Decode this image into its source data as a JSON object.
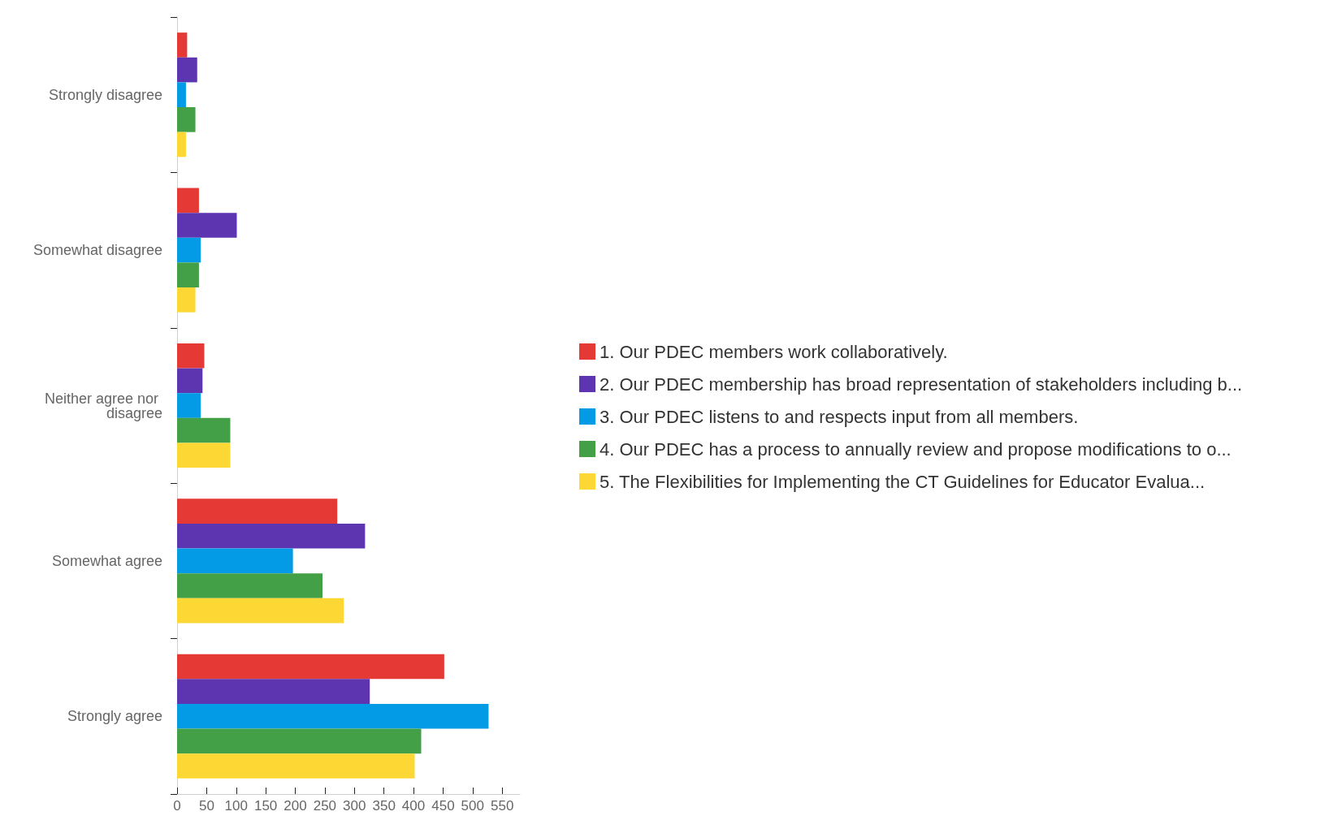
{
  "chart_data": {
    "type": "bar",
    "orientation": "horizontal",
    "categories": [
      "Strongly disagree",
      "Somewhat disagree",
      "Neither agree nor disagree",
      "Somewhat agree",
      "Strongly agree"
    ],
    "series": [
      {
        "name": "1. Our PDEC members work collaboratively.",
        "color": "#e53935",
        "values": [
          17,
          37,
          46,
          271,
          452
        ]
      },
      {
        "name": "2. Our PDEC membership has broad representation of stakeholders including b...",
        "color": "#5e35b1",
        "values": [
          34,
          101,
          43,
          318,
          326
        ]
      },
      {
        "name": "3. Our PDEC listens to and respects input from all members.",
        "color": "#039be5",
        "values": [
          15,
          40,
          40,
          196,
          527
        ]
      },
      {
        "name": "4. Our PDEC has a process to annually review and propose modifications to o...",
        "color": "#43a047",
        "values": [
          31,
          37,
          90,
          246,
          413
        ]
      },
      {
        "name": "5. The Flexibilities for Implementing the CT Guidelines for Educator Evalua...",
        "color": "#fdd835",
        "values": [
          15,
          31,
          90,
          282,
          402
        ]
      }
    ],
    "xlim": [
      0,
      580
    ],
    "xticks": [
      0,
      50,
      100,
      150,
      200,
      250,
      300,
      350,
      400,
      450,
      500,
      550
    ],
    "grid": false,
    "legend": "right"
  }
}
